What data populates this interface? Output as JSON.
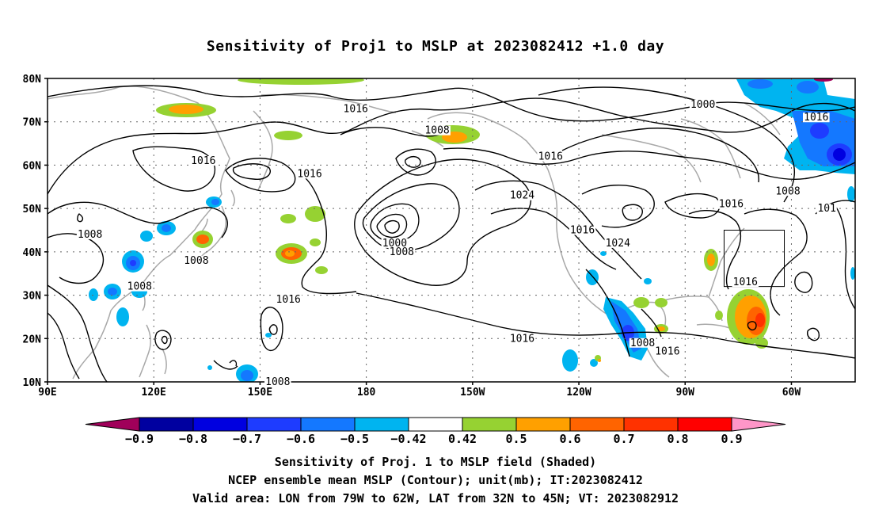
{
  "title": "Sensitivity of Proj1 to MSLP at 2023082412 +1.0 day",
  "axes": {
    "lat_labels": [
      "80N",
      "70N",
      "60N",
      "50N",
      "40N",
      "30N",
      "20N",
      "10N"
    ],
    "lon_labels": [
      "90E",
      "120E",
      "150E",
      "180",
      "150W",
      "120W",
      "90W",
      "60W"
    ]
  },
  "contour_labels": [
    {
      "text": "1016",
      "lon": 134,
      "lat": 61
    },
    {
      "text": "1008",
      "lon": 102,
      "lat": 44
    },
    {
      "text": "1008",
      "lon": 116,
      "lat": 32
    },
    {
      "text": "1008",
      "lon": 132,
      "lat": 38
    },
    {
      "text": "1016",
      "lon": 164,
      "lat": 58
    },
    {
      "text": "1016",
      "lon": 177,
      "lat": 73
    },
    {
      "text": "1008",
      "lon": 200,
      "lat": 68
    },
    {
      "text": "1016",
      "lon": 158,
      "lat": 29
    },
    {
      "text": "1000",
      "lon": 188,
      "lat": 42
    },
    {
      "text": "1008",
      "lon": 190,
      "lat": 40
    },
    {
      "text": "1024",
      "lon": 224,
      "lat": 53
    },
    {
      "text": "1016",
      "lon": 232,
      "lat": 62
    },
    {
      "text": "1000",
      "lon": 275,
      "lat": 74
    },
    {
      "text": "1016",
      "lon": 241,
      "lat": 45
    },
    {
      "text": "1024",
      "lon": 251,
      "lat": 42
    },
    {
      "text": "1016",
      "lon": 283,
      "lat": 51
    },
    {
      "text": "1008",
      "lon": 299,
      "lat": 54
    },
    {
      "text": "1016",
      "lon": 307,
      "lat": 71
    },
    {
      "text": "101",
      "lon": 310,
      "lat": 50
    },
    {
      "text": "1016",
      "lon": 287,
      "lat": 33
    },
    {
      "text": "1016",
      "lon": 224,
      "lat": 20
    },
    {
      "text": "1008",
      "lon": 258,
      "lat": 19
    },
    {
      "text": "1016",
      "lon": 265,
      "lat": 17
    },
    {
      "text": "1008",
      "lon": 155,
      "lat": 10
    }
  ],
  "valid_box": {
    "lon_min": 281,
    "lon_max": 298,
    "lat_min": 32,
    "lat_max": 45
  },
  "colorbar": {
    "labels": [
      "-0.9",
      "-0.8",
      "-0.7",
      "-0.6",
      "-0.5",
      "-0.42",
      "0.42",
      "0.5",
      "0.6",
      "0.7",
      "0.8",
      "0.9"
    ],
    "colors": [
      "#a0005a",
      "#0000a0",
      "#0000e0",
      "#1e3cff",
      "#1478ff",
      "#00b4f0",
      "#ffffff",
      "#96d232",
      "#ffa000",
      "#ff6400",
      "#ff3200",
      "#ff0000",
      "#ff96c8"
    ]
  },
  "captions": [
    "Sensitivity of Proj. 1 to MSLP field (Shaded)",
    "NCEP ensemble mean MSLP (Contour); unit(mb); IT:2023082412",
    "Valid area: LON from 79W to 62W, LAT from 32N to 45N; VT: 2023082912"
  ]
}
